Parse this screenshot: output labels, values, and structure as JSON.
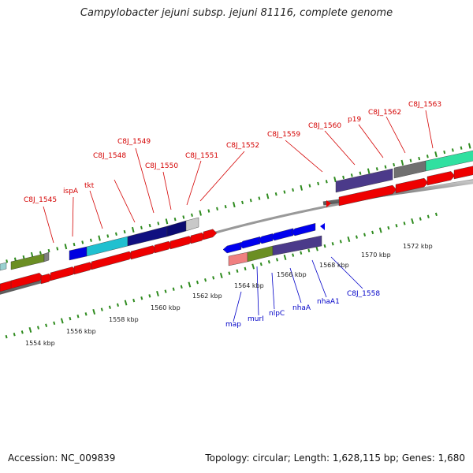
{
  "title": "Campylobacter jejuni subsp. jejuni 81116, complete genome",
  "footer": {
    "accession": "Accession: NC_009839",
    "summary": "Topology: circular; Length: 1,628,115 bp; Genes: 1,680"
  },
  "colors": {
    "label_top": "#d40000",
    "label_bottom": "#0000c8",
    "backbone": "#8c8c8c",
    "tick": "#2e8b1e",
    "feature_red": "#ee0000",
    "feature_blue": "#0000ee"
  },
  "top_labels": [
    "C8J_1545",
    "ispA",
    "tkt",
    "C8J_1548",
    "C8J_1549",
    "C8J_1550",
    "C8J_1551",
    "C8J_1552",
    "C8J_1559",
    "C8J_1560",
    "p19",
    "C8J_1562",
    "C8J_1563"
  ],
  "bottom_labels": [
    "map",
    "murI",
    "nlpC",
    "nhaA",
    "nhaA1",
    "C8J_1558"
  ],
  "kbp_labels": [
    "1554 kbp",
    "1556 kbp",
    "1558 kbp",
    "1560 kbp",
    "1562 kbp",
    "1564 kbp",
    "1566 kbp",
    "1568 kbp",
    "1570 kbp",
    "1572 kbp"
  ]
}
